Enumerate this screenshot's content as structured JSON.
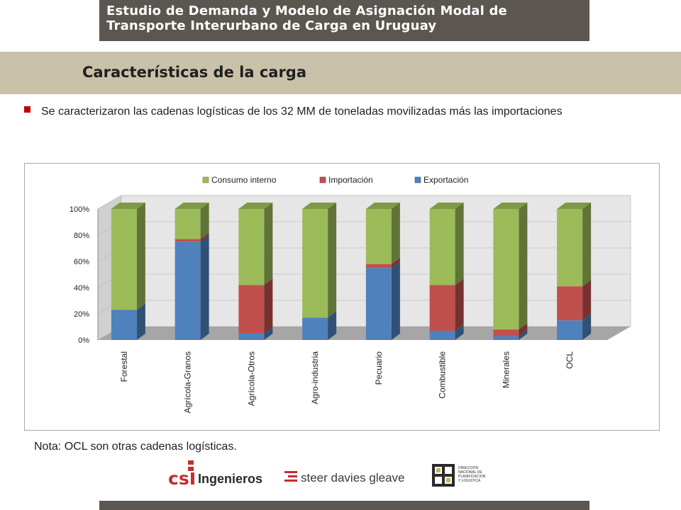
{
  "header": {
    "banner_line1": "Estudio de Demanda y Modelo de Asignación Modal de",
    "banner_line2": "Transporte Interurbano de Carga en Uruguay",
    "section_title": "Características de la carga"
  },
  "bullet_text": "Se caracterizaron las cadenas logísticas de los 32 MM de toneladas movilizadas más las importaciones",
  "note": "Nota: OCL son otras cadenas logísticas.",
  "logos": {
    "csi": "Ingenieros",
    "sdg": "steer davies gleave",
    "mtop_text": "DIRECCION NACIONAL DE PLANIFICACION Y LOGISTICA"
  },
  "colors": {
    "exportacion": "#4f81bd",
    "importacion": "#c0504d",
    "consumo": "#9bbb59"
  },
  "chart_data": {
    "type": "bar",
    "stacked": true,
    "percent": true,
    "three_d": true,
    "categories": [
      "Forestal",
      "Agrícola-Granos",
      "Agrícola-Otros",
      "Agro-industria",
      "Pecuario",
      "Combustible",
      "Minerales",
      "OCL"
    ],
    "series": [
      {
        "name": "Exportación",
        "color": "#4f81bd",
        "values": [
          23,
          75,
          5,
          17,
          55,
          7,
          3,
          15
        ]
      },
      {
        "name": "Importación",
        "color": "#c0504d",
        "values": [
          0,
          2,
          37,
          0,
          3,
          35,
          5,
          26
        ]
      },
      {
        "name": "Consumo interno",
        "color": "#9bbb59",
        "values": [
          77,
          23,
          58,
          83,
          42,
          58,
          92,
          59
        ]
      }
    ],
    "legend_order": [
      "Consumo interno",
      "Importación",
      "Exportación"
    ],
    "legend_position": "top",
    "yticks": [
      "0%",
      "20%",
      "40%",
      "60%",
      "80%",
      "100%"
    ],
    "ylim": [
      0,
      100
    ],
    "grid": true
  }
}
